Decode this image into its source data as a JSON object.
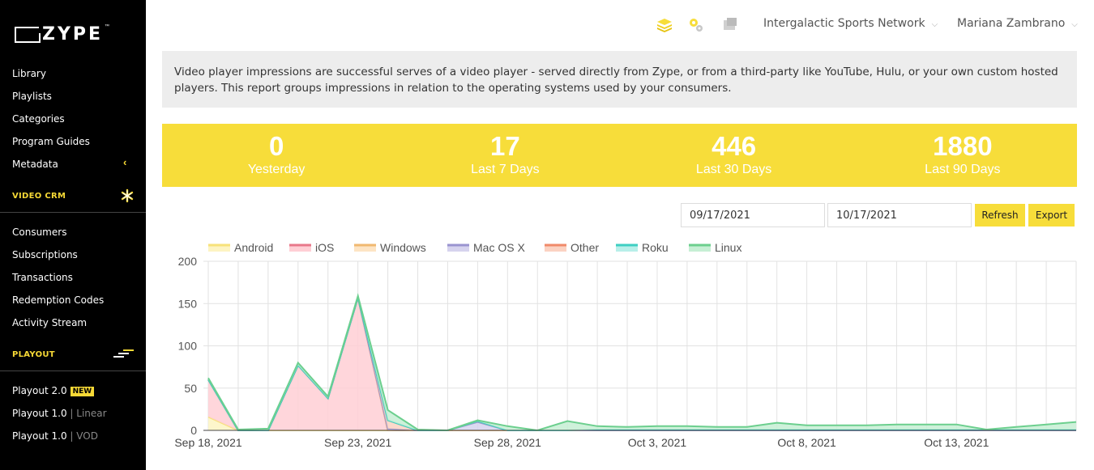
{
  "brand": {
    "name": "ZYPE",
    "tm": "™"
  },
  "sidebar": {
    "items_top": [
      "Library",
      "Playlists",
      "Categories",
      "Program Guides",
      "Metadata"
    ],
    "video_crm_label": "VIDEO CRM",
    "items_crm": [
      "Consumers",
      "Subscriptions",
      "Transactions",
      "Redemption Codes",
      "Activity Stream"
    ],
    "playout_label": "PLAYOUT",
    "playout_items": [
      {
        "label": "Playout 2.0",
        "badge": "NEW",
        "suffix": ""
      },
      {
        "label": "Playout 1.0",
        "badge": "",
        "suffix": "| Linear"
      },
      {
        "label": "Playout 1.0",
        "badge": "",
        "suffix": "| VOD"
      }
    ]
  },
  "topbar": {
    "network": "Intergalactic Sports Network",
    "user": "Mariana Zambrano",
    "icons": [
      "stack-icon",
      "gears-icon",
      "notes-icon"
    ]
  },
  "info_text": "Video player impressions are successful serves of a video player - served directly from Zype, or from a third-party like YouTube, Hulu, or your own custom hosted players. This report groups impressions in relation to the operating systems used by your consumers.",
  "stats": [
    {
      "value": "0",
      "label": "Yesterday"
    },
    {
      "value": "17",
      "label": "Last 7 Days"
    },
    {
      "value": "446",
      "label": "Last 30 Days"
    },
    {
      "value": "1880",
      "label": "Last 90 Days"
    }
  ],
  "filters": {
    "start_date": "09/17/2021",
    "end_date": "10/17/2021",
    "refresh_label": "Refresh",
    "export_label": "Export"
  },
  "colors": {
    "accent": "#f7dd3a",
    "sidebar_bg": "#000000"
  },
  "chart_data": {
    "type": "area",
    "x": [
      "Sep 18, 2021",
      "Sep 19, 2021",
      "Sep 20, 2021",
      "Sep 21, 2021",
      "Sep 22, 2021",
      "Sep 23, 2021",
      "Sep 24, 2021",
      "Sep 25, 2021",
      "Sep 26, 2021",
      "Sep 27, 2021",
      "Sep 28, 2021",
      "Sep 29, 2021",
      "Sep 30, 2021",
      "Oct 1, 2021",
      "Oct 2, 2021",
      "Oct 3, 2021",
      "Oct 4, 2021",
      "Oct 5, 2021",
      "Oct 6, 2021",
      "Oct 7, 2021",
      "Oct 8, 2021",
      "Oct 9, 2021",
      "Oct 10, 2021",
      "Oct 11, 2021",
      "Oct 12, 2021",
      "Oct 13, 2021",
      "Oct 14, 2021",
      "Oct 15, 2021",
      "Oct 16, 2021",
      "Oct 17, 2021"
    ],
    "xticks": [
      "Sep 18, 2021",
      "Sep 23, 2021",
      "Sep 28, 2021",
      "Oct 3, 2021",
      "Oct 8, 2021",
      "Oct 13, 2021"
    ],
    "ylim": [
      0,
      200
    ],
    "yticks": [
      0,
      50,
      100,
      150,
      200
    ],
    "series": [
      {
        "name": "Android",
        "color": "#f7e27a",
        "fill": "#fdf4c2",
        "values": [
          16,
          0,
          0,
          0,
          0,
          0,
          0,
          0,
          0,
          0,
          0,
          0,
          0,
          0,
          0,
          0,
          0,
          0,
          0,
          0,
          0,
          0,
          0,
          0,
          0,
          0,
          0,
          0,
          0,
          0
        ]
      },
      {
        "name": "iOS",
        "color": "#e8788a",
        "fill": "#ffcfd5",
        "values": [
          44,
          0,
          0,
          77,
          38,
          157,
          0,
          0,
          0,
          0,
          0,
          0,
          0,
          0,
          0,
          0,
          0,
          0,
          0,
          0,
          0,
          0,
          0,
          0,
          0,
          0,
          0,
          0,
          0,
          0
        ]
      },
      {
        "name": "Windows",
        "color": "#f0b870",
        "fill": "#fde4c4",
        "values": [
          0,
          0,
          0,
          0,
          0,
          0,
          0,
          0,
          0,
          0,
          0,
          0,
          0,
          0,
          0,
          0,
          0,
          0,
          0,
          0,
          0,
          0,
          0,
          0,
          0,
          0,
          0,
          0,
          0,
          0
        ]
      },
      {
        "name": "Mac OS X",
        "color": "#9a94d0",
        "fill": "#d6d3ee",
        "values": [
          0,
          0,
          0,
          0,
          0,
          0,
          2,
          0,
          0,
          10,
          0,
          0,
          0,
          0,
          0,
          0,
          0,
          0,
          0,
          0,
          0,
          0,
          0,
          0,
          0,
          0,
          0,
          0,
          0,
          0
        ]
      },
      {
        "name": "Other",
        "color": "#f08a6a",
        "fill": "#fbd2c2",
        "values": [
          0,
          0,
          0,
          0,
          0,
          0,
          10,
          0,
          0,
          1,
          0,
          0,
          0,
          1,
          1,
          1,
          1,
          1,
          1,
          1,
          1,
          1,
          1,
          1,
          1,
          1,
          1,
          1,
          1,
          1
        ]
      },
      {
        "name": "Roku",
        "color": "#3ecfc2",
        "fill": "#b8efe9",
        "values": [
          0,
          0,
          0,
          0,
          0,
          0,
          0,
          0,
          0,
          0,
          0,
          0,
          0,
          0,
          0,
          0,
          0,
          0,
          0,
          0,
          0,
          0,
          0,
          0,
          0,
          0,
          0,
          0,
          0,
          0
        ]
      },
      {
        "name": "Linux",
        "color": "#6ccf8e",
        "fill": "#c6efd4",
        "values": [
          2,
          1,
          2,
          3,
          2,
          2,
          12,
          1,
          0,
          1,
          5,
          0,
          11,
          4,
          3,
          4,
          4,
          3,
          3,
          8,
          5,
          5,
          5,
          6,
          6,
          6,
          0,
          3,
          6,
          9
        ]
      }
    ]
  }
}
